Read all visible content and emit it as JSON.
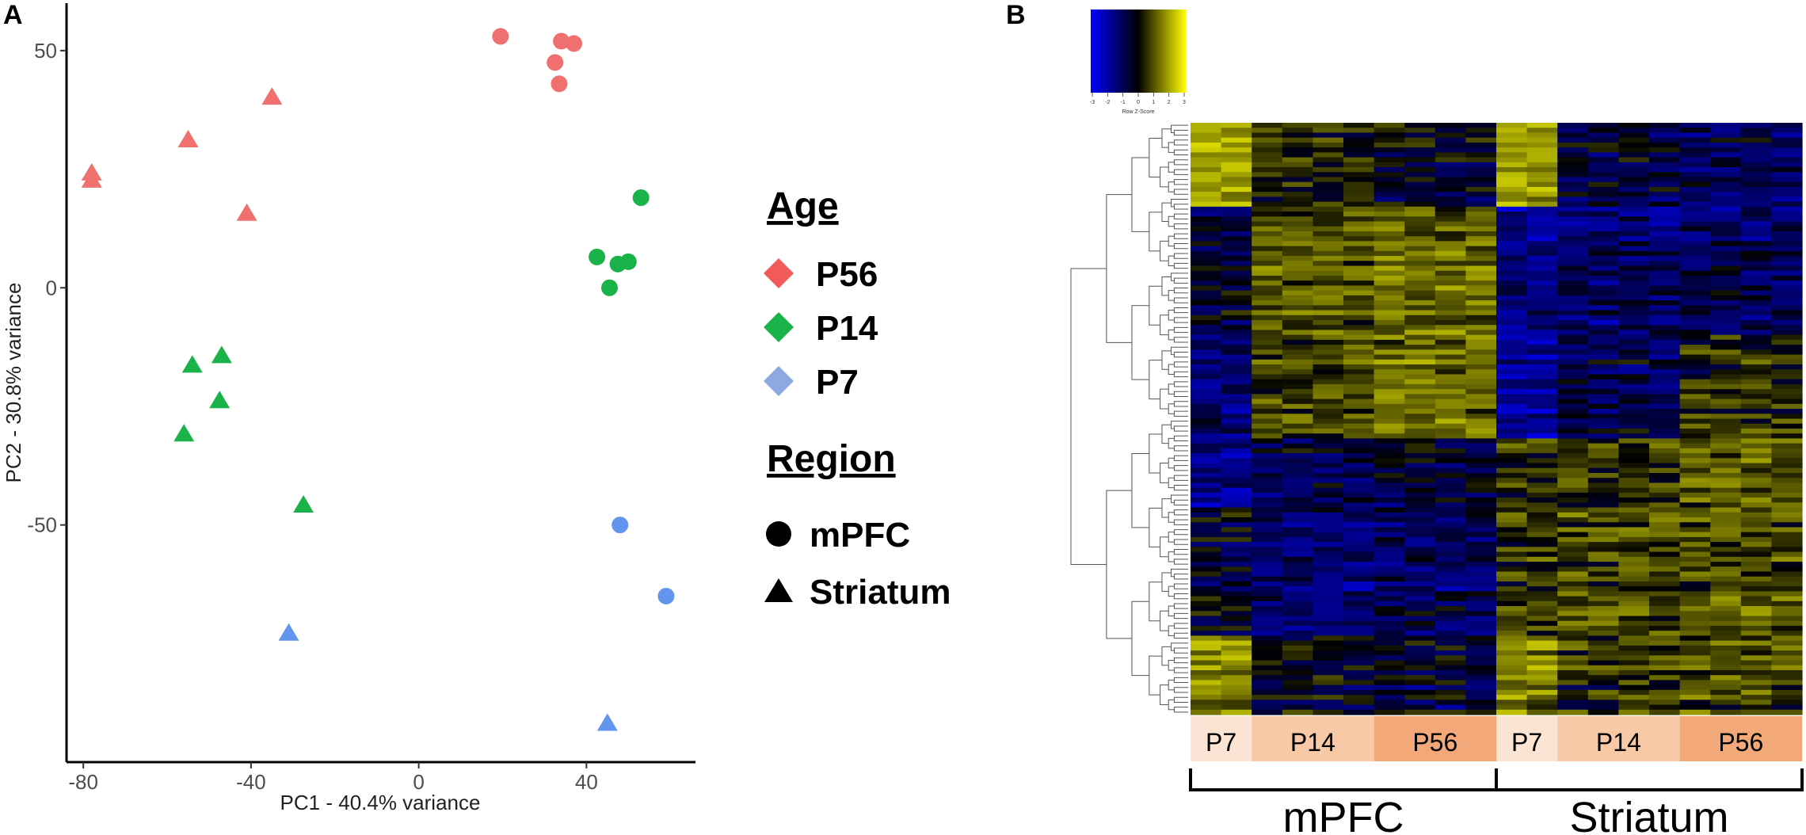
{
  "panels": {
    "left": "A",
    "right": "B"
  },
  "chart_data": [
    {
      "type": "scatter",
      "title": "",
      "xlabel": "PC1 - 40.4% variance",
      "ylabel": "PC2 - 30.8% variance",
      "xlim": [
        -84,
        66
      ],
      "ylim": [
        -100,
        60
      ],
      "xticks": [
        -80,
        -40,
        0,
        40
      ],
      "xtick_labels": [
        "-80",
        "-40",
        "0",
        "40"
      ],
      "yticks": [
        50,
        0,
        -50
      ],
      "ytick_labels": [
        "50",
        "0",
        "-50"
      ],
      "colors": {
        "P56": "#f07070",
        "P14": "#1ab34a",
        "P7": "#6495ed"
      },
      "series": [
        {
          "name": "P56 mPFC",
          "age": "P56",
          "region": "mPFC",
          "shape": "circle",
          "x": [
            19.5,
            34,
            37,
            32.5,
            33.5
          ],
          "y": [
            53,
            52,
            51.5,
            47.5,
            43
          ]
        },
        {
          "name": "P56 Striatum",
          "age": "P56",
          "region": "Striatum",
          "shape": "triangle",
          "x": [
            -35,
            -55,
            -78,
            -78,
            -41
          ],
          "y": [
            40,
            31,
            24,
            22.5,
            15.5
          ]
        },
        {
          "name": "P14 mPFC",
          "age": "P14",
          "region": "mPFC",
          "shape": "circle",
          "x": [
            53,
            42.5,
            47.5,
            50,
            45.5
          ],
          "y": [
            19,
            6.5,
            5,
            5.5,
            0
          ]
        },
        {
          "name": "P14 Striatum",
          "age": "P14",
          "region": "Striatum",
          "shape": "triangle",
          "x": [
            -47,
            -54,
            -47.5,
            -56,
            -27.5
          ],
          "y": [
            -14.5,
            -16.5,
            -24,
            -31,
            -46
          ]
        },
        {
          "name": "P7 mPFC",
          "age": "P7",
          "region": "mPFC",
          "shape": "circle",
          "x": [
            48,
            59
          ],
          "y": [
            -50,
            -65
          ]
        },
        {
          "name": "P7 Striatum",
          "age": "P7",
          "region": "Striatum",
          "shape": "triangle",
          "x": [
            -31,
            45
          ],
          "y": [
            -73,
            -92
          ]
        }
      ]
    },
    {
      "type": "heatmap",
      "title": "",
      "color_key": {
        "title": "Row Z-Score",
        "ticks": [
          "-3",
          "-2",
          "-1",
          "0",
          "1",
          "2",
          "3"
        ],
        "colors": [
          "#0000ff",
          "#000000",
          "#ffff00"
        ]
      },
      "columns": 20,
      "rows": 120,
      "column_groups": [
        {
          "label": "P7",
          "columns": 2,
          "color": "#fbe4d3"
        },
        {
          "label": "P14",
          "columns": 4,
          "color": "#f7c9a7"
        },
        {
          "label": "P56",
          "columns": 4,
          "color": "#f2a878"
        },
        {
          "label": "P7",
          "columns": 2,
          "color": "#fbe4d3"
        },
        {
          "label": "P14",
          "columns": 4,
          "color": "#f7c9a7"
        },
        {
          "label": "P56",
          "columns": 4,
          "color": "#f2a878"
        }
      ],
      "regions": [
        {
          "label": "mPFC",
          "columns": 10
        },
        {
          "label": "Striatum",
          "columns": 10
        }
      ]
    }
  ],
  "legend": {
    "age_title": "Age",
    "age_items": [
      {
        "label": "P56",
        "color": "#f05a5a"
      },
      {
        "label": "P14",
        "color": "#1ab34a"
      },
      {
        "label": "P7",
        "color": "#8ea9e0"
      }
    ],
    "region_title": "Region",
    "region_items": [
      {
        "label": "mPFC",
        "shape": "circle"
      },
      {
        "label": "Striatum",
        "shape": "triangle"
      }
    ]
  }
}
